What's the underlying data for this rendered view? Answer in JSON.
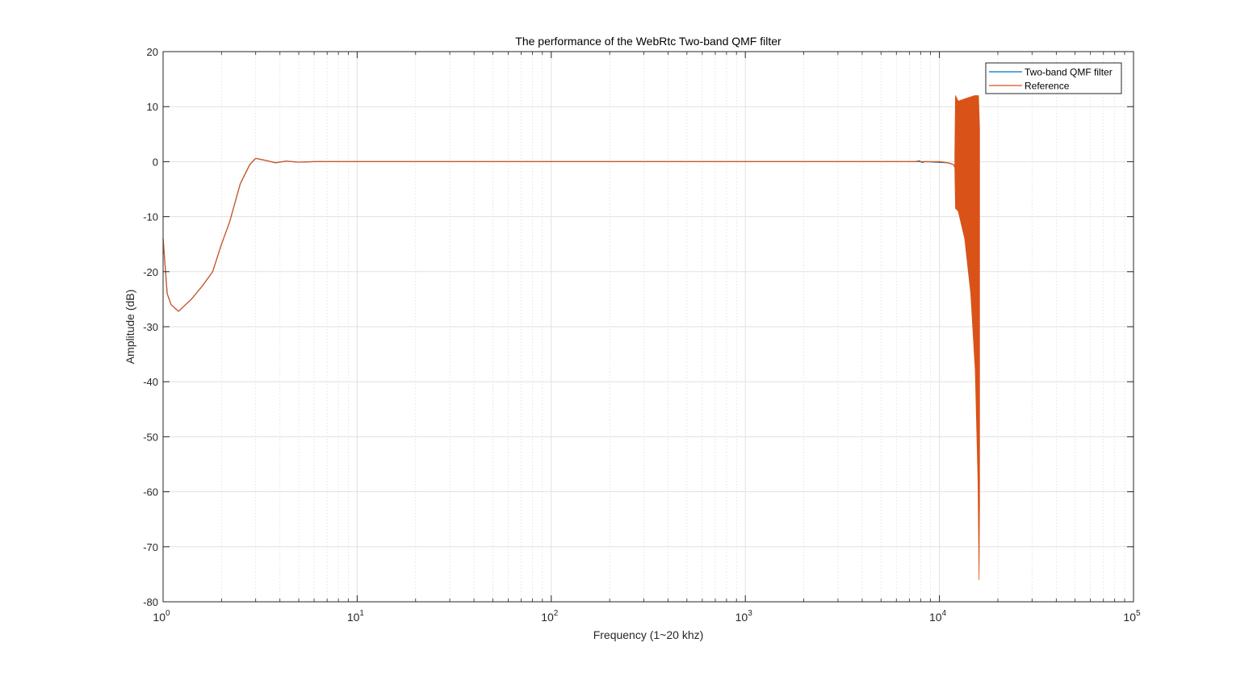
{
  "chart_data": {
    "type": "line",
    "title": "The performance of the WebRtc Two-band QMF filter",
    "xlabel": "Frequency (1~20 khz)",
    "ylabel": "Amplitude (dB)",
    "x_scale": "log",
    "xlim": [
      1,
      100000
    ],
    "ylim": [
      -80,
      20
    ],
    "x_ticks": [
      {
        "value": 1,
        "base": "10",
        "exp": "0"
      },
      {
        "value": 10,
        "base": "10",
        "exp": "1"
      },
      {
        "value": 100,
        "base": "10",
        "exp": "2"
      },
      {
        "value": 1000,
        "base": "10",
        "exp": "3"
      },
      {
        "value": 10000,
        "base": "10",
        "exp": "4"
      },
      {
        "value": 100000,
        "base": "10",
        "exp": "5"
      }
    ],
    "y_ticks": [
      20,
      10,
      0,
      -10,
      -20,
      -30,
      -40,
      -50,
      -60,
      -70,
      -80
    ],
    "grid": true,
    "minor_grid": true,
    "legend_position": "top-right",
    "series": [
      {
        "name": "Two-band QMF filter",
        "color": "#0072BD",
        "x": [
          1,
          1.05,
          1.1,
          1.2,
          1.4,
          1.6,
          1.8,
          2.0,
          2.2,
          2.5,
          2.8,
          3.0,
          3.3,
          3.8,
          4.3,
          5,
          6,
          7,
          8,
          10,
          100,
          1000,
          7500,
          7900,
          8100,
          8500,
          11000,
          11800,
          12000
        ],
        "y": [
          -14,
          -24,
          -26,
          -27.2,
          -25,
          -22.5,
          -20,
          -15,
          -11,
          -4,
          -0.5,
          0.6,
          0.3,
          -0.2,
          0.1,
          -0.1,
          0,
          0,
          0,
          0,
          0,
          0,
          0,
          0.15,
          -0.15,
          0,
          -0.2,
          -0.5,
          -1.0
        ]
      },
      {
        "name": "Reference",
        "color": "#D95319",
        "x": [
          1,
          1.05,
          1.1,
          1.2,
          1.4,
          1.6,
          1.8,
          2.0,
          2.2,
          2.5,
          2.8,
          3.0,
          3.3,
          3.8,
          4.3,
          5,
          6,
          7,
          8,
          10,
          100,
          1000,
          10000,
          11000,
          11800,
          12000
        ],
        "y": [
          -14,
          -24,
          -26,
          -27.2,
          -25,
          -22.5,
          -20,
          -15,
          -11,
          -4,
          -0.5,
          0.6,
          0.3,
          -0.2,
          0.1,
          -0.1,
          0,
          0,
          0,
          0,
          0,
          0,
          0,
          -0.2,
          -0.5,
          -1.0
        ]
      }
    ],
    "high_band_envelope": {
      "upper": [
        {
          "x": 12000,
          "y": 1
        },
        {
          "x": 12100,
          "y": 12
        },
        {
          "x": 12500,
          "y": 11
        },
        {
          "x": 14000,
          "y": 11.6
        },
        {
          "x": 15200,
          "y": 12
        },
        {
          "x": 15900,
          "y": 12
        },
        {
          "x": 16100,
          "y": 6
        }
      ],
      "lower": [
        {
          "x": 12000,
          "y": -1
        },
        {
          "x": 12100,
          "y": -8.5
        },
        {
          "x": 12500,
          "y": -9
        },
        {
          "x": 13500,
          "y": -14
        },
        {
          "x": 14500,
          "y": -24
        },
        {
          "x": 15300,
          "y": -38
        },
        {
          "x": 15800,
          "y": -58
        },
        {
          "x": 16000,
          "y": -76
        },
        {
          "x": 16100,
          "y": -62
        }
      ],
      "color": "#D95319"
    }
  }
}
